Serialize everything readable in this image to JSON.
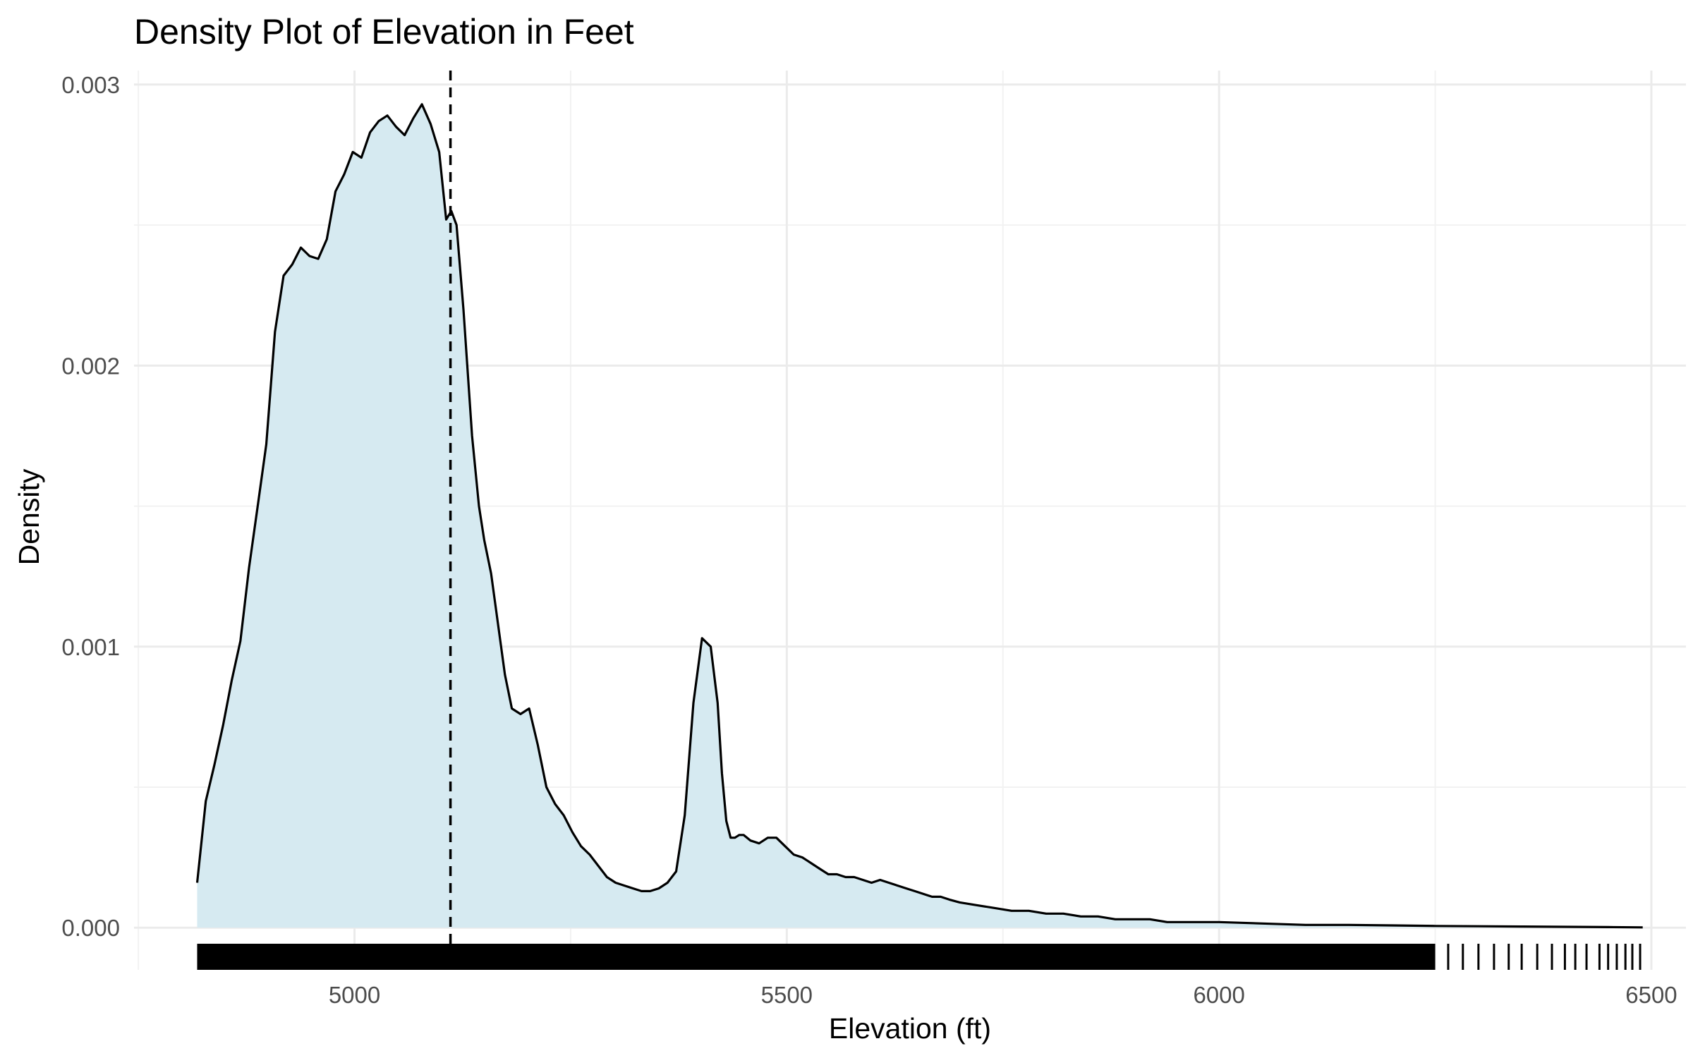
{
  "chart_data": {
    "type": "area",
    "title": "Density Plot of Elevation in Feet",
    "xlabel": "Elevation (ft)",
    "ylabel": "Density",
    "xlim": [
      4745,
      6540
    ],
    "ylim": [
      -0.00015,
      0.00305
    ],
    "x_ticks": [
      5000,
      5500,
      6000,
      6500
    ],
    "x_tick_labels": [
      "5000",
      "5500",
      "6000",
      "6500"
    ],
    "y_ticks": [
      0,
      0.001,
      0.002,
      0.003
    ],
    "y_tick_labels": [
      "0.000",
      "0.001",
      "0.002",
      "0.003"
    ],
    "grid": true,
    "legend": "none",
    "fill_color": "#d6eaf1",
    "line_color": "#000000",
    "vline": {
      "x": 5111,
      "style": "dashed"
    },
    "rug": {
      "range": [
        4818,
        6250
      ],
      "sparse_ticks": [
        6265,
        6282,
        6300,
        6318,
        6335,
        6350,
        6368,
        6385,
        6400,
        6412,
        6425,
        6440,
        6450,
        6460,
        6470,
        6478,
        6487
      ]
    },
    "series": [
      {
        "x": [
          4818,
          4828,
          4838,
          4848,
          4858,
          4868,
          4878,
          4888,
          4898,
          4908,
          4918,
          4928,
          4938,
          4948,
          4958,
          4968,
          4978,
          4988,
          4998,
          5008,
          5018,
          5028,
          5038,
          5048,
          5058,
          5068,
          5078,
          5088,
          5098,
          5106,
          5112,
          5118,
          5126,
          5136,
          5144,
          5150,
          5158,
          5166,
          5174,
          5182,
          5192,
          5202,
          5212,
          5222,
          5232,
          5242,
          5252,
          5262,
          5272,
          5282,
          5292,
          5302,
          5312,
          5322,
          5332,
          5342,
          5352,
          5362,
          5372,
          5382,
          5392,
          5402,
          5412,
          5420,
          5425,
          5430,
          5435,
          5440,
          5445,
          5450,
          5458,
          5468,
          5478,
          5488,
          5498,
          5508,
          5518,
          5528,
          5538,
          5548,
          5558,
          5568,
          5578,
          5588,
          5598,
          5608,
          5618,
          5628,
          5638,
          5648,
          5658,
          5668,
          5678,
          5688,
          5700,
          5720,
          5740,
          5760,
          5780,
          5800,
          5820,
          5840,
          5860,
          5880,
          5900,
          5920,
          5940,
          5960,
          5980,
          6000,
          6050,
          6100,
          6150,
          6200,
          6250,
          6300,
          6350,
          6400,
          6450,
          6490
        ],
        "y": [
          0.00016,
          0.00045,
          0.00058,
          0.00072,
          0.00088,
          0.00102,
          0.00128,
          0.0015,
          0.00172,
          0.00212,
          0.00232,
          0.00236,
          0.00242,
          0.00239,
          0.00238,
          0.00245,
          0.00262,
          0.00268,
          0.00276,
          0.00274,
          0.00283,
          0.00287,
          0.00289,
          0.00285,
          0.00282,
          0.00288,
          0.00293,
          0.00286,
          0.00276,
          0.00252,
          0.00255,
          0.0025,
          0.0022,
          0.00175,
          0.0015,
          0.00138,
          0.00126,
          0.00108,
          0.0009,
          0.00078,
          0.00076,
          0.00078,
          0.00065,
          0.0005,
          0.00044,
          0.0004,
          0.00034,
          0.00029,
          0.00026,
          0.00022,
          0.00018,
          0.00016,
          0.00015,
          0.00014,
          0.00013,
          0.00013,
          0.00014,
          0.00016,
          0.0002,
          0.0004,
          0.0008,
          0.00103,
          0.001,
          0.0008,
          0.00055,
          0.00038,
          0.00032,
          0.00032,
          0.00033,
          0.00033,
          0.00031,
          0.0003,
          0.00032,
          0.00032,
          0.00029,
          0.00026,
          0.00025,
          0.00023,
          0.00021,
          0.00019,
          0.00019,
          0.00018,
          0.00018,
          0.00017,
          0.00016,
          0.00017,
          0.00016,
          0.00015,
          0.00014,
          0.00013,
          0.00012,
          0.00011,
          0.00011,
          0.0001,
          9e-05,
          8e-05,
          7e-05,
          6e-05,
          6e-05,
          5e-05,
          5e-05,
          4e-05,
          4e-05,
          3e-05,
          3e-05,
          3e-05,
          2e-05,
          2e-05,
          2e-05,
          2e-05,
          1.5e-05,
          1e-05,
          1e-05,
          8e-06,
          6e-06,
          5e-06,
          4e-06,
          3e-06,
          2e-06,
          1e-06
        ]
      }
    ]
  }
}
